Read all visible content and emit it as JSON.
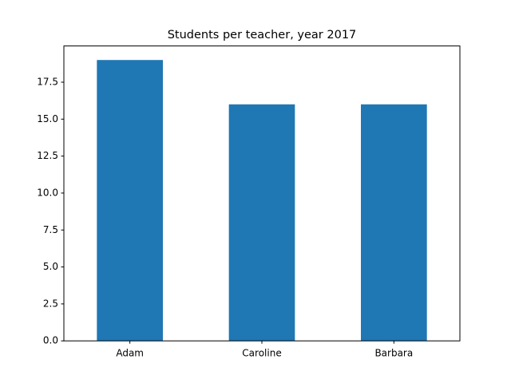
{
  "chart_data": {
    "type": "bar",
    "title": "Students per teacher, year 2017",
    "categories": [
      "Adam",
      "Caroline",
      "Barbara"
    ],
    "values": [
      19,
      16,
      16
    ],
    "color": "#1f77b4",
    "ylim": [
      0,
      19.95
    ],
    "yticks": [
      {
        "value": 0,
        "label": "0.0"
      },
      2.5,
      {
        "value": 5,
        "label": "5.0"
      },
      7.5,
      {
        "value": 10,
        "label": "10.0"
      },
      12.5,
      {
        "value": 15,
        "label": "15.0"
      },
      17.5
    ],
    "grid": false
  }
}
